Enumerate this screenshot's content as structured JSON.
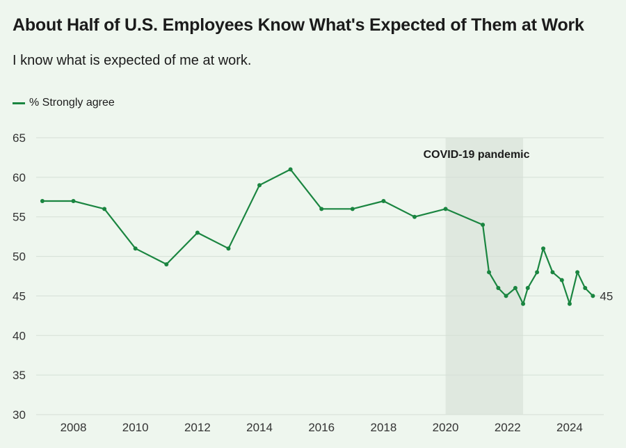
{
  "colors": {
    "background": "#eef6ee",
    "line": "#1a8540",
    "grid": "#d5dfd6",
    "shade": "#dfe8df"
  },
  "chart_data": {
    "type": "line",
    "title": "About Half of U.S. Employees Know What's Expected of Them at Work",
    "subtitle": "I know what is expected of me at work.",
    "xlabel": "",
    "ylabel": "",
    "ylim": [
      30,
      65
    ],
    "xlim": [
      2006.8,
      2025.1
    ],
    "grid": true,
    "legend_position": "top-left",
    "yticks": [
      30,
      35,
      40,
      45,
      50,
      55,
      60,
      65
    ],
    "xticks": [
      2008,
      2010,
      2012,
      2014,
      2016,
      2018,
      2020,
      2022,
      2024
    ],
    "series": [
      {
        "name": "% Strongly agree",
        "x": [
          2007,
          2008,
          2009,
          2010,
          2011,
          2012,
          2013,
          2014,
          2015,
          2016,
          2017,
          2018,
          2019,
          2020,
          2021.2,
          2021.4,
          2021.7,
          2021.95,
          2022.25,
          2022.5,
          2022.65,
          2022.95,
          2023.15,
          2023.45,
          2023.75,
          2024.0,
          2024.25,
          2024.5,
          2024.75
        ],
        "values": [
          57,
          57,
          56,
          51,
          49,
          53,
          51,
          59,
          61,
          56,
          56,
          57,
          55,
          56,
          54,
          48,
          46,
          45,
          46,
          44,
          46,
          48,
          51,
          48,
          47,
          44,
          48,
          46,
          45
        ]
      }
    ],
    "end_label": "45",
    "annotations": [
      {
        "label": "COVID-19 pandemic",
        "x_start": 2020,
        "x_end": 2022.5
      }
    ]
  }
}
